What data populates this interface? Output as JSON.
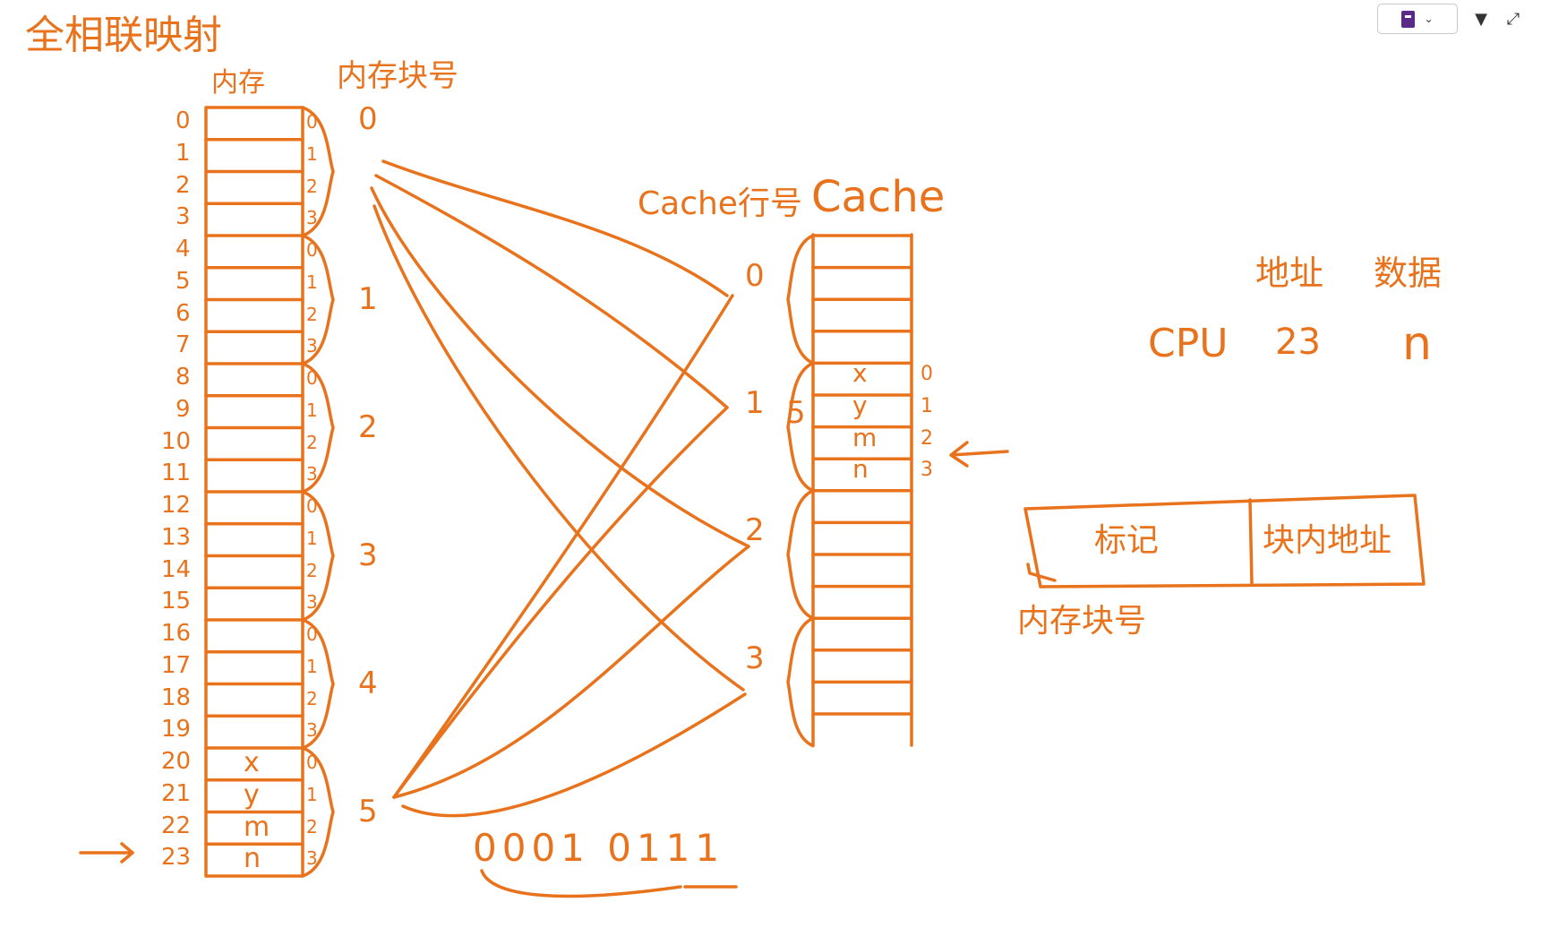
{
  "title": "全相联映射",
  "memory_label": "内存",
  "block_no_label": "内存块号",
  "cache_line_label": "Cache行号",
  "cache_label": "Cache",
  "addr_header": "地址",
  "data_header": "数据",
  "cpu_label": "CPU",
  "cpu_addr": "23",
  "cpu_data": "n",
  "mem_addresses": [
    "0",
    "1",
    "2",
    "3",
    "4",
    "5",
    "6",
    "7",
    "8",
    "9",
    "10",
    "11",
    "12",
    "13",
    "14",
    "15",
    "16",
    "17",
    "18",
    "19",
    "20",
    "21",
    "22",
    "23"
  ],
  "mem_contents": {
    "20": "x",
    "21": "y",
    "22": "m",
    "23": "n"
  },
  "in_block_offsets": [
    "0",
    "1",
    "2",
    "3"
  ],
  "block_numbers": [
    "0",
    "1",
    "2",
    "3",
    "4",
    "5"
  ],
  "cache_lines": [
    "0",
    "1",
    "2",
    "3"
  ],
  "cache_contents": [
    "x",
    "y",
    "m",
    "n"
  ],
  "cache_offsets": [
    "0",
    "1",
    "2",
    "3"
  ],
  "cache_tag_value": "5",
  "binary_address": "0001 0111",
  "addr_format": {
    "tag": "标记",
    "offset": "块内地址",
    "tag_note": "内存块号"
  }
}
